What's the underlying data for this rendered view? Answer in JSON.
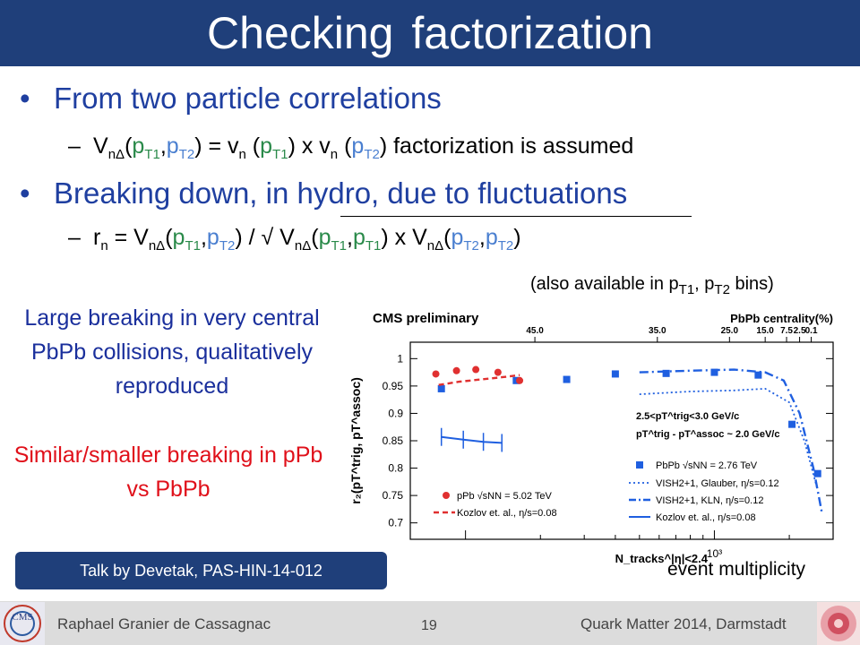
{
  "slide": {
    "title": "Checking factorization",
    "bullet1": "From two particle correlations",
    "bullet2": "Breaking down, in hydro, due to fluctuations",
    "sub1": {
      "V": "V",
      "V_sub": "nΔ",
      "open": "(",
      "pT1": "p",
      "pT1_sub": "T1",
      "comma": ",",
      "pT2": "p",
      "pT2_sub": "T2",
      "mid": ") = v",
      "vn_sub": "n",
      "mid2": " (",
      "mid3": ") x v",
      "mid4": " (",
      "end": ") factorization is assumed"
    },
    "sub2": {
      "r": "r",
      "r_sub": "n",
      "eq": " = V",
      "slash": ") / √ V",
      "x": ") x V",
      "close": ")"
    },
    "note_left1": "Large breaking in very central PbPb collisions, qualitatively reproduced",
    "note_left2": "Similar/smaller breaking in pPb vs PbPb",
    "talk": "Talk by Devetak, PAS-HIN-14-012",
    "also_available": "(also available in p",
    "also_sub1": "T1",
    "also_mid": ", p",
    "also_sub2": "T2",
    "also_end": " bins)",
    "event_multiplicity": "event multiplicity",
    "footer_left": "Raphael Granier de Cassagnac",
    "page_number": "19",
    "footer_right": "Quark Matter 2014, Darmstadt"
  },
  "colors": {
    "title_bg": "#1f3f7a",
    "bullet_text": "#1f3fa0",
    "note_blue": "#1a2f9c",
    "note_red": "#e0101a",
    "pbpb_marker": "#1f5fe0",
    "ppb_marker": "#e03030"
  },
  "chart_data": {
    "type": "scatter",
    "title": "CMS preliminary",
    "top_axis_label": "PbPb centrality(%)",
    "top_ticks": [
      {
        "x": 190,
        "label": "45.0"
      },
      {
        "x": 590,
        "label": "35.0"
      },
      {
        "x": 1150,
        "label": "25.0"
      },
      {
        "x": 1600,
        "label": "15.0"
      },
      {
        "x": 1950,
        "label": "7.5"
      },
      {
        "x": 2200,
        "label": "2.5"
      },
      {
        "x": 2450,
        "label": "0.1"
      }
    ],
    "ylabel": "r₂(pT^trig, pT^assoc)",
    "xlabel": "N_tracks^|η|<2.4",
    "x_tick_label": "10³",
    "x_tick_value": 1000,
    "xscale": "log",
    "xlim": [
      60,
      3000
    ],
    "ylim": [
      0.67,
      1.03
    ],
    "yticks": [
      0.7,
      0.75,
      0.8,
      0.85,
      0.9,
      0.95,
      1
    ],
    "ytick_labels": [
      "0.7",
      "0.75",
      "0.8",
      "0.85",
      "0.9",
      "0.95",
      "1"
    ],
    "legend_header": [
      "2.5<pT^trig<3.0 GeV/c",
      "pT^trig - pT^assoc ~ 2.0 GeV/c"
    ],
    "series": [
      {
        "name": "PbPb √sNN = 2.76 TeV",
        "kind": "markers-square",
        "x": [
          80,
          160,
          255,
          400,
          640,
          1000,
          1500,
          2050,
          2600
        ],
        "y": [
          0.945,
          0.96,
          0.962,
          0.972,
          0.973,
          0.975,
          0.97,
          0.88,
          0.79
        ]
      },
      {
        "name": "pPb √sNN = 5.02 TeV",
        "kind": "markers-circle",
        "x": [
          76,
          92,
          110,
          135,
          165
        ],
        "y": [
          0.972,
          0.978,
          0.98,
          0.975,
          0.96
        ]
      },
      {
        "name": "VISH2+1, Glauber, η/s=0.12",
        "kind": "dotted",
        "x": [
          500,
          800,
          1200,
          1600,
          2000,
          2300,
          2600
        ],
        "y": [
          0.935,
          0.94,
          0.942,
          0.945,
          0.92,
          0.85,
          0.76
        ]
      },
      {
        "name": "VISH2+1, KLN, η/s=0.12",
        "kind": "dash-dot",
        "x": [
          500,
          800,
          1200,
          1600,
          1900,
          2200,
          2500,
          2700
        ],
        "y": [
          0.975,
          0.978,
          0.98,
          0.975,
          0.96,
          0.9,
          0.8,
          0.72
        ]
      },
      {
        "name": "Kozlov et. al., η/s=0.08",
        "kind": "solid-bars",
        "x": [
          80,
          98,
          118,
          140
        ],
        "y": [
          0.857,
          0.852,
          0.848,
          0.846
        ]
      },
      {
        "name": "Kozlov et. al., η/s=0.08",
        "kind": "dashed-red",
        "x": [
          78,
          95,
          115,
          140,
          165
        ],
        "y": [
          0.952,
          0.958,
          0.962,
          0.966,
          0.97
        ]
      }
    ]
  }
}
